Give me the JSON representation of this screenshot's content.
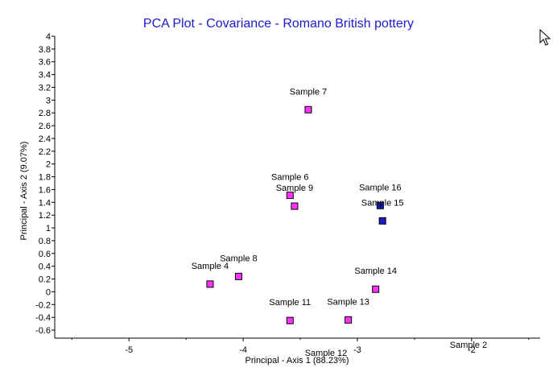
{
  "chart_data": {
    "type": "scatter",
    "title": "PCA Plot - Covariance - Romano British pottery",
    "xlabel": "Principal - Axis 1 (88.23%)",
    "ylabel": "Principal - Axis 2 (9.07%)",
    "xlim": [
      -5.65,
      -1.4
    ],
    "ylim": [
      -0.65,
      4.0
    ],
    "xticks": [
      {
        "value": -5,
        "label": "-5"
      },
      {
        "value": -4,
        "label": "-4"
      },
      {
        "value": -3,
        "label": "-3"
      },
      {
        "value": -2,
        "label": "-2"
      }
    ],
    "yticks": [
      {
        "value": 4,
        "label": "4"
      },
      {
        "value": 3.8,
        "label": "3.8"
      },
      {
        "value": 3.6,
        "label": "3.6"
      },
      {
        "value": 3.4,
        "label": "3.4"
      },
      {
        "value": 3.2,
        "label": "3.2"
      },
      {
        "value": 3,
        "label": "3"
      },
      {
        "value": 2.8,
        "label": "2.8"
      },
      {
        "value": 2.6,
        "label": "2.6"
      },
      {
        "value": 2.4,
        "label": "2.4"
      },
      {
        "value": 2.2,
        "label": "2.2"
      },
      {
        "value": 2,
        "label": "2"
      },
      {
        "value": 1.8,
        "label": "1.8"
      },
      {
        "value": 1.6,
        "label": "1.6"
      },
      {
        "value": 1.4,
        "label": "1.4"
      },
      {
        "value": 1.2,
        "label": "1.2"
      },
      {
        "value": 1,
        "label": "1"
      },
      {
        "value": 0.8,
        "label": "0.8"
      },
      {
        "value": 0.6,
        "label": "0.6"
      },
      {
        "value": 0.4,
        "label": "0.4"
      },
      {
        "value": 0.2,
        "label": "0.2"
      },
      {
        "value": 0,
        "label": "0"
      },
      {
        "value": -0.2,
        "label": "-0.2"
      },
      {
        "value": -0.4,
        "label": "-0.4"
      },
      {
        "value": -0.6,
        "label": "-0.6"
      }
    ],
    "grid": false,
    "legend": "none",
    "series": [
      {
        "color": "#ff33ff",
        "points": [
          {
            "label": "Sample 7",
            "x": -3.43,
            "y": 2.85
          },
          {
            "label": "Sample 6",
            "x": -3.59,
            "y": 1.51
          },
          {
            "label": "Sample 9",
            "x": -3.55,
            "y": 1.34
          },
          {
            "label": "Sample 8",
            "x": -4.04,
            "y": 0.24
          },
          {
            "label": "Sample 4",
            "x": -4.29,
            "y": 0.12
          },
          {
            "label": "Sample 11",
            "x": -3.59,
            "y": -0.45
          },
          {
            "label": "Sample 13",
            "x": -3.08,
            "y": -0.44
          },
          {
            "label": "Sample 14",
            "x": -2.84,
            "y": 0.04
          }
        ]
      },
      {
        "color": "#1a1acc",
        "points": [
          {
            "label": "Sample 16",
            "x": -2.8,
            "y": 1.35
          },
          {
            "label": "Sample 15",
            "x": -2.78,
            "y": 1.11
          }
        ]
      }
    ],
    "offscale_labels": [
      "Sample 12",
      "Sample 2"
    ]
  }
}
